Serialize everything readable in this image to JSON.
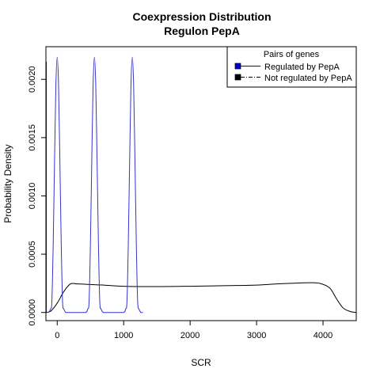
{
  "chart_data": {
    "type": "line",
    "title": [
      "Coexpression Distribution",
      "Regulon PepA"
    ],
    "xlabel": "SCR",
    "ylabel": "Probability Density",
    "xlim": [
      -170,
      4500
    ],
    "ylim": [
      -7e-05,
      0.00228
    ],
    "xticks": [
      0,
      1000,
      2000,
      3000,
      4000
    ],
    "xtick_labels": [
      "0",
      "1000",
      "2000",
      "3000",
      "4000"
    ],
    "yticks": [
      0.0,
      0.0005,
      0.001,
      0.0015,
      0.002
    ],
    "ytick_labels": [
      "0.0000",
      "0.0005",
      "0.0010",
      "0.0015",
      "0.0020"
    ],
    "grid": false,
    "legend": {
      "title": "Pairs of genes",
      "position": "top-right",
      "entries": [
        {
          "label": "Regulated by PepA",
          "color": "#0000cc",
          "line": "solid"
        },
        {
          "label": "Not regulated by PepA",
          "color": "#000000",
          "line": "dashdot"
        }
      ]
    },
    "series": [
      {
        "name": "Regulated by PepA",
        "color": "#3333cc",
        "x": [
          -130,
          -100,
          -80,
          -60,
          -40,
          -20,
          0,
          20,
          40,
          60,
          80,
          100,
          130,
          170,
          250,
          350,
          430,
          460,
          480,
          500,
          520,
          540,
          560,
          580,
          600,
          620,
          640,
          660,
          690,
          720,
          800,
          900,
          1000,
          1030,
          1050,
          1070,
          1090,
          1110,
          1130,
          1150,
          1170,
          1190,
          1210,
          1230,
          1260,
          1290
        ],
        "y": [
          0.0,
          3e-05,
          0.0001,
          0.0006,
          0.0013,
          0.00195,
          0.00219,
          0.00195,
          0.0013,
          0.0006,
          0.0001,
          3e-05,
          0.0,
          0.0,
          0.0,
          0.0,
          0.0,
          3e-05,
          0.0001,
          0.0006,
          0.0013,
          0.00195,
          0.00219,
          0.00195,
          0.0013,
          0.0006,
          0.0001,
          3e-05,
          0.0,
          0.0,
          0.0,
          0.0,
          0.0,
          3e-05,
          0.0001,
          0.0006,
          0.0013,
          0.00195,
          0.00219,
          0.00195,
          0.0013,
          0.0006,
          0.0001,
          3e-05,
          0.0,
          0.0
        ]
      },
      {
        "name": "Not regulated by PepA",
        "color": "#000000",
        "x": [
          -170,
          -100,
          0,
          100,
          200,
          300,
          500,
          700,
          1000,
          1500,
          2000,
          2500,
          3000,
          3300,
          3600,
          3800,
          3950,
          4100,
          4200,
          4300,
          4400,
          4500
        ],
        "y": [
          0.0,
          1e-05,
          8e-05,
          0.00018,
          0.000245,
          0.000245,
          0.00024,
          0.000235,
          0.000225,
          0.000222,
          0.000225,
          0.00023,
          0.000235,
          0.000245,
          0.000252,
          0.000255,
          0.00025,
          0.00021,
          0.00012,
          4e-05,
          1e-05,
          0.0
        ]
      }
    ],
    "left_edge_spike": {
      "x": -165,
      "y": 0.00215
    }
  }
}
